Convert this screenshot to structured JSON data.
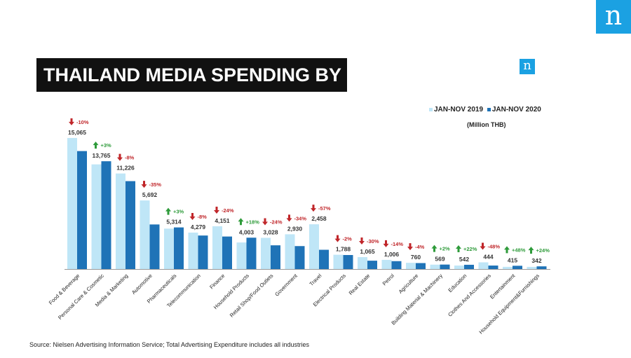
{
  "logo": {
    "letter": "n"
  },
  "header": {
    "title": "THAILAND  MEDIA SPENDING BY INDUSTRY"
  },
  "legend": {
    "series_2019": "JAN-NOV 2019",
    "series_2020": "JAN-NOV 2020",
    "unit": "(Million THB)"
  },
  "source": "Source: Nielsen Advertising Information Service; Total Advertising Expenditure includes all industries",
  "colors": {
    "y2019": "#bfe6f7",
    "y2020": "#1f73b7",
    "up": "#2e9b3a",
    "down": "#c0262a",
    "brand": "#1ba1e2"
  },
  "chart_data": {
    "type": "bar",
    "categories": [
      "Food & Beverage",
      "Personal Care & Cosmetic",
      "Media & Marketing",
      "Automotive",
      "Pharmaceuticals",
      "Telecommunication",
      "Finance",
      "Household Products",
      "Retail Shop/Food Outlets",
      "Government",
      "Travel",
      "Electrical Products",
      "Real Estate",
      "Petrol",
      "Agriculture",
      "Building Material & Machinery",
      "Education",
      "Clothes And Accessories",
      "Entertainment",
      "Household Equipment&Furnishings"
    ],
    "series": [
      {
        "name": "JAN-NOV 2019",
        "values": [
          16739,
          13365,
          12200,
          8757,
          5160,
          4653,
          5462,
          3392,
          3984,
          4439,
          5716,
          1824,
          1521,
          1170,
          792,
          558,
          444,
          854,
          280,
          276
        ]
      },
      {
        "name": "JAN-NOV 2020",
        "values": [
          15065,
          13765,
          11226,
          5692,
          5314,
          4279,
          4151,
          4003,
          3028,
          2930,
          2458,
          1788,
          1065,
          1006,
          760,
          569,
          542,
          444,
          415,
          342
        ]
      }
    ],
    "value_labels": [
      "15,065",
      "13,765",
      "11,226",
      "5,692",
      "5,314",
      "4,279",
      "4,151",
      "4,003",
      "3,028",
      "2,930",
      "2,458",
      "1,788",
      "1,065",
      "1,006",
      "760",
      "569",
      "542",
      "444",
      "415",
      "342"
    ],
    "changes": [
      "-10%",
      "+3%",
      "-8%",
      "-35%",
      "+3%",
      "-8%",
      "-24%",
      "+18%",
      "-24%",
      "-34%",
      "-57%",
      "-2%",
      "-30%",
      "-14%",
      "-4%",
      "+2%",
      "+22%",
      "-48%",
      "+48%",
      "+24%"
    ],
    "directions": [
      "down",
      "up",
      "down",
      "down",
      "up",
      "down",
      "down",
      "up",
      "down",
      "down",
      "down",
      "down",
      "down",
      "down",
      "down",
      "up",
      "up",
      "down",
      "up",
      "up"
    ],
    "ylim": [
      0,
      17000
    ],
    "grid": false,
    "legend_position": "top-right"
  }
}
